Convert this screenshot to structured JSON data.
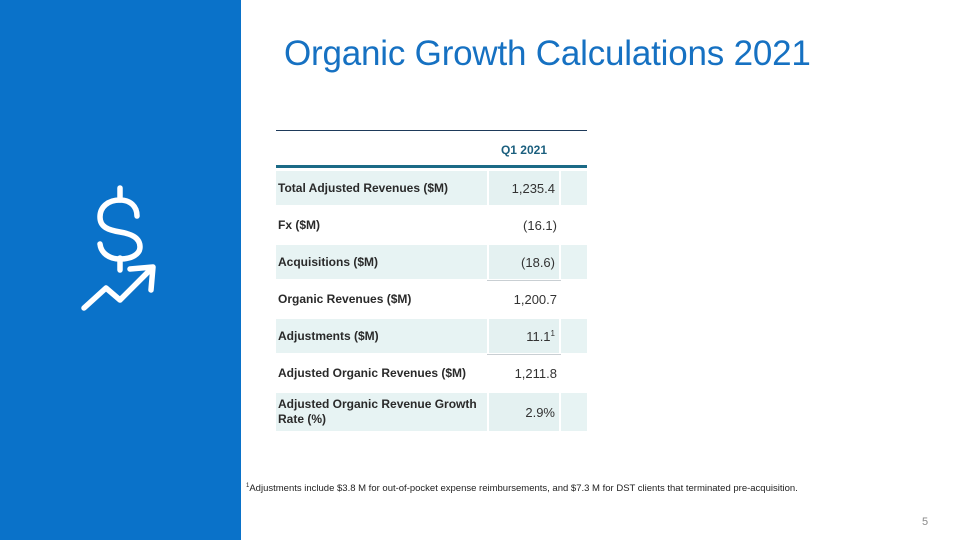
{
  "slide": {
    "title": "Organic Growth Calculations 2021",
    "page_number": "5",
    "icon": "dollar-growth-arrow-icon",
    "colors": {
      "sidebar": "#0a72c9",
      "title": "#1671c2",
      "header_rule": "#1b6a86",
      "row_shade": "#e7f3f3"
    }
  },
  "table": {
    "column_header": "Q1 2021",
    "rows": [
      {
        "label": "Total Adjusted Revenues ($M)",
        "value": "1,235.4",
        "sup": ""
      },
      {
        "label": "Fx ($M)",
        "value": "(16.1)",
        "sup": ""
      },
      {
        "label": "Acquisitions ($M)",
        "value": "(18.6)",
        "sup": ""
      },
      {
        "label": "Organic Revenues ($M)",
        "value": "1,200.7",
        "sup": ""
      },
      {
        "label": "Adjustments ($M)",
        "value": "11.1",
        "sup": "1"
      },
      {
        "label": "Adjusted Organic Revenues ($M)",
        "value": "1,211.8",
        "sup": ""
      },
      {
        "label": "Adjusted Organic Revenue Growth Rate (%)",
        "value": "2.9%",
        "sup": ""
      }
    ]
  },
  "footnote": {
    "marker": "1",
    "text": "Adjustments include $3.8 M for out-of-pocket expense reimbursements, and $7.3 M for DST clients that terminated pre-acquisition."
  }
}
